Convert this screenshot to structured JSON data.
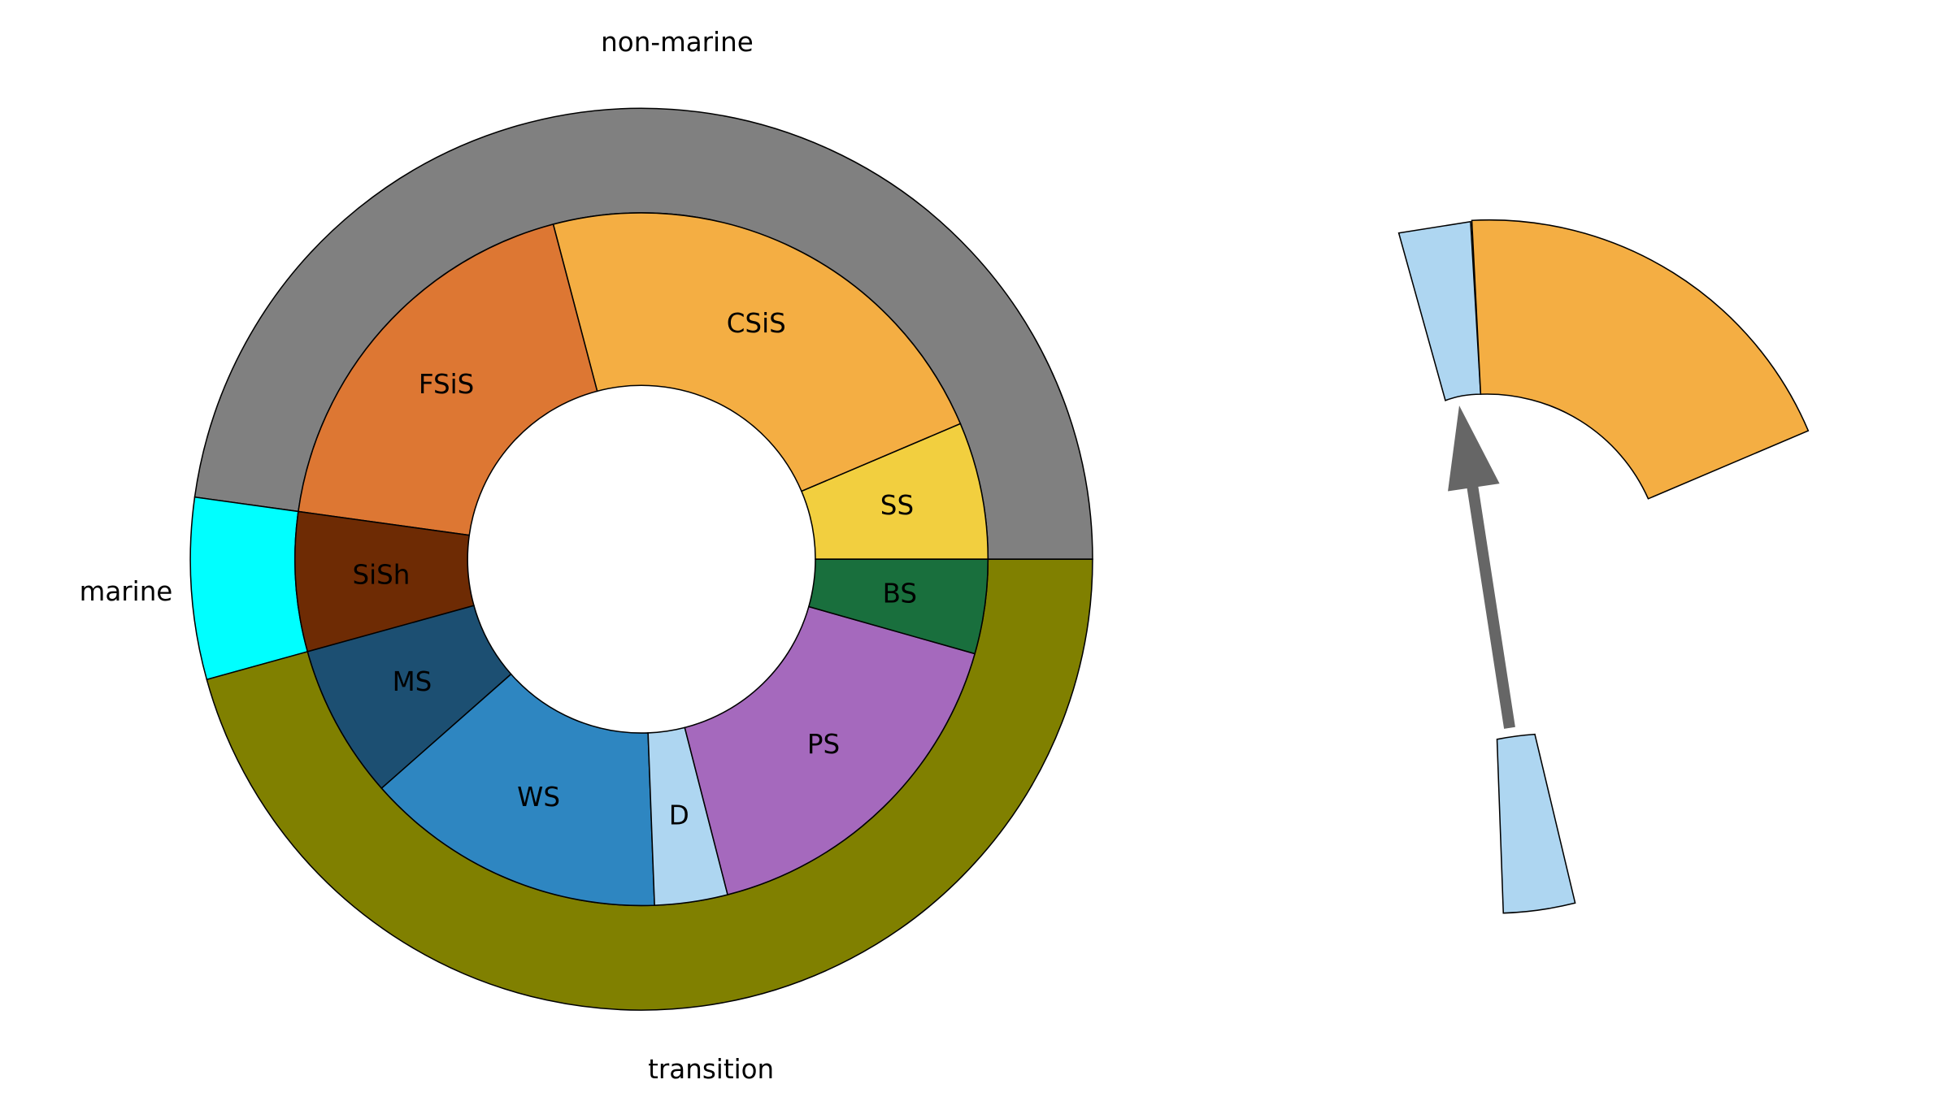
{
  "chart_data": {
    "type": "pie",
    "outer": {
      "labels": [
        "non-marine",
        "marine",
        "transition"
      ],
      "values": [
        47.8,
        6.5,
        45.7
      ],
      "colors": [
        "#808080",
        "#00ffff",
        "#808000"
      ]
    },
    "inner": {
      "labels": [
        "SS",
        "CSiS",
        "FSiS",
        "SiSh",
        "MS",
        "WS",
        "D",
        "PS",
        "BS"
      ],
      "values": [
        6.4,
        22.7,
        18.7,
        6.5,
        7.2,
        14.1,
        3.4,
        16.6,
        4.4
      ],
      "colors": [
        "#f2cf3f",
        "#f4ae43",
        "#dd7733",
        "#6e2b04",
        "#1c4f72",
        "#2e86c1",
        "#aed6f1",
        "#a569bd",
        "#196f3d"
      ]
    }
  }
}
